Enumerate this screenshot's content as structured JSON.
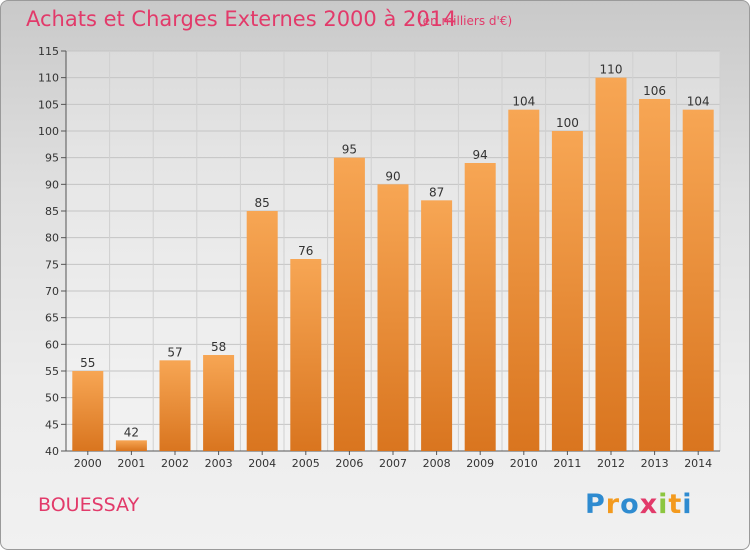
{
  "header": {
    "title": "Achats et Charges Externes 2000 à 2014",
    "subtitle": "(en milliers d'€)"
  },
  "footer": {
    "commune": "BOUESSAY",
    "logo_text": "Proxiti",
    "logo_letters": [
      {
        "ch": "P",
        "color": "#2e8bd0"
      },
      {
        "ch": "r",
        "color": "#f39a1e"
      },
      {
        "ch": "o",
        "color": "#2e8bd0"
      },
      {
        "ch": "x",
        "color": "#e23a6a"
      },
      {
        "ch": "i",
        "color": "#8cc63f"
      },
      {
        "ch": "t",
        "color": "#f39a1e"
      },
      {
        "ch": "i",
        "color": "#2e8bd0"
      }
    ]
  },
  "colors": {
    "accent": "#e23a6a",
    "bar_top": "#f7a654",
    "bar_bottom": "#d9751f"
  },
  "chart_data": {
    "type": "bar",
    "categories": [
      "2000",
      "2001",
      "2002",
      "2003",
      "2004",
      "2005",
      "2006",
      "2007",
      "2008",
      "2009",
      "2010",
      "2011",
      "2012",
      "2013",
      "2014"
    ],
    "values": [
      55,
      42,
      57,
      58,
      85,
      76,
      95,
      90,
      87,
      94,
      104,
      100,
      110,
      106,
      104
    ],
    "title": "Achats et Charges Externes 2000 à 2014",
    "xlabel": "",
    "ylabel": "",
    "ylim": [
      40,
      115
    ],
    "yticks": [
      40,
      45,
      50,
      55,
      60,
      65,
      70,
      75,
      80,
      85,
      90,
      95,
      100,
      105,
      110,
      115
    ],
    "grid": true,
    "data_labels": true
  }
}
